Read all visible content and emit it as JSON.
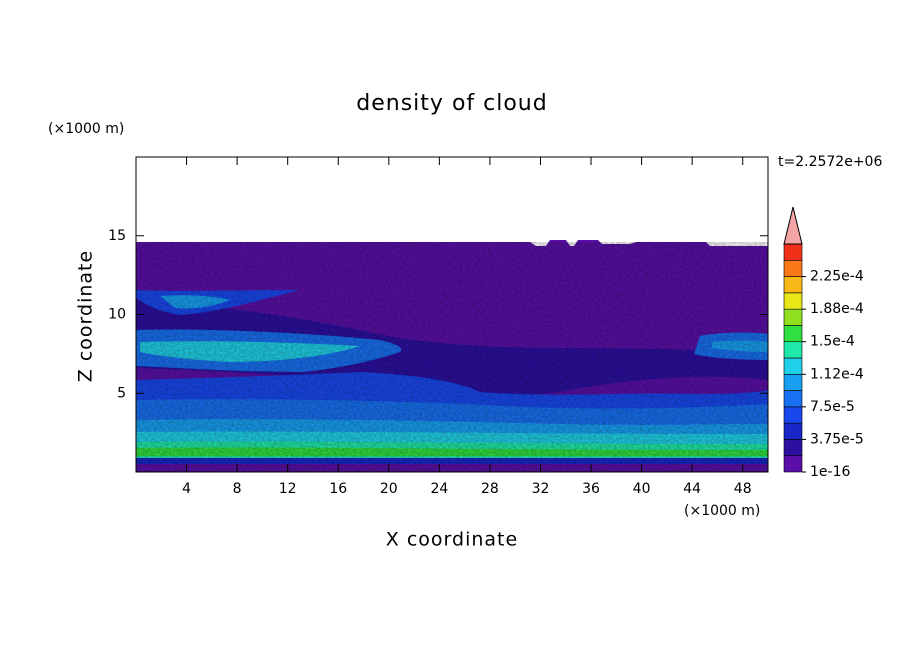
{
  "chart_data": {
    "type": "contour",
    "title": "density of cloud",
    "x_label": "X coordinate",
    "y_label": "Z coordinate",
    "x_unit": "(×1000 m)",
    "y_unit": "(×1000 m)",
    "annotation": "t=2.2572e+06",
    "xlim": [
      0,
      50
    ],
    "ylim": [
      0,
      20
    ],
    "xticks": [
      4,
      8,
      12,
      16,
      20,
      24,
      28,
      32,
      36,
      40,
      44,
      48
    ],
    "yticks": [
      5,
      10,
      15
    ],
    "colorbar": {
      "clim": [
        1e-16,
        0.0002625
      ],
      "colors": [
        "#5a10a8",
        "#2c10a0",
        "#1828c8",
        "#1848ee",
        "#1870f2",
        "#18a0f2",
        "#20d0e8",
        "#20e8a8",
        "#30e040",
        "#90e020",
        "#e8e818",
        "#f8b818",
        "#f87818",
        "#f03018"
      ],
      "extend_color": "#f4a4a4",
      "ticks": [
        {
          "value": 1e-16,
          "label": "1e-16"
        },
        {
          "value": 3.75e-05,
          "label": "3.75e-5"
        },
        {
          "value": 7.5e-05,
          "label": "7.5e-5"
        },
        {
          "value": 0.0001125,
          "label": "1.12e-4"
        },
        {
          "value": 0.00015,
          "label": "1.5e-4"
        },
        {
          "value": 0.0001875,
          "label": "1.88e-4"
        },
        {
          "value": 0.000225,
          "label": "2.25e-4"
        }
      ]
    }
  }
}
